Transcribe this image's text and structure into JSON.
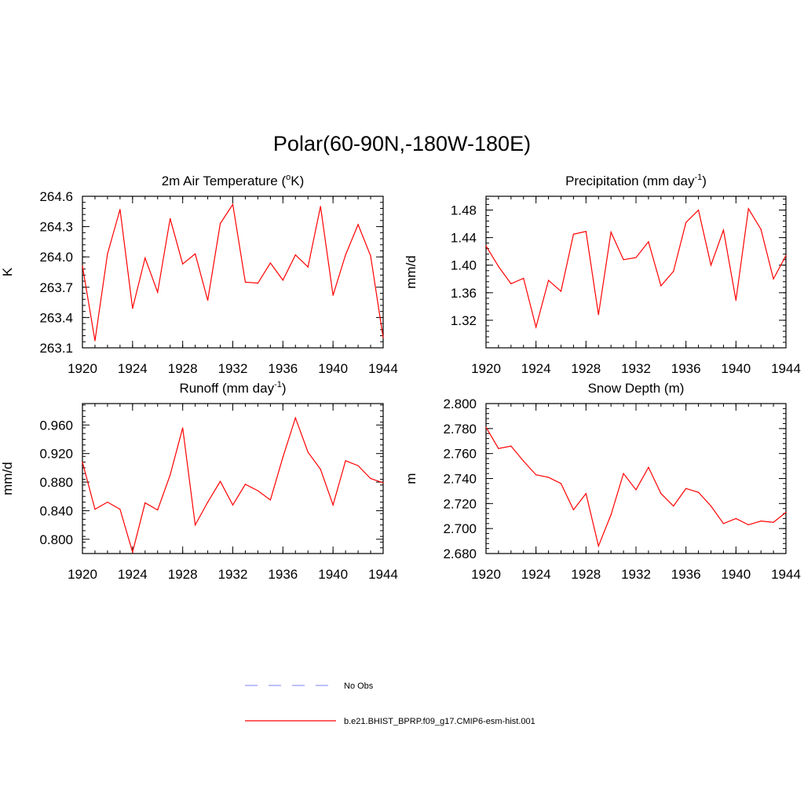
{
  "page_title": "Polar(60-90N,-180W-180E)",
  "legend": {
    "items": [
      {
        "label": "No Obs",
        "color": "#9999ff",
        "dash": true
      },
      {
        "label": "b.e21.BHIST_BPRP.f09_g17.CMIP6-esm-hist.001",
        "color": "#ff0000",
        "dash": false
      }
    ]
  },
  "chart_data": [
    {
      "type": "line",
      "title": "2m Air Temperature (",
      "title_sup": "o",
      "title_after": "K)",
      "ylabel": "K",
      "xlabel": "",
      "xlim": [
        1920,
        1944
      ],
      "ylim": [
        263.1,
        264.6
      ],
      "xticks": [
        "1920",
        "1924",
        "1928",
        "1932",
        "1936",
        "1940",
        "1944"
      ],
      "yticks": [
        "263.1",
        "263.4",
        "263.7",
        "264.0",
        "264.3",
        "264.6"
      ],
      "series": [
        {
          "name": "b.e21.BHIST_BPRP.f09_g17.CMIP6-esm-hist.001",
          "color": "#ff0000",
          "x": [
            1920,
            1921,
            1922,
            1923,
            1924,
            1925,
            1926,
            1927,
            1928,
            1929,
            1930,
            1931,
            1932,
            1933,
            1934,
            1935,
            1936,
            1937,
            1938,
            1939,
            1940,
            1941,
            1942,
            1943,
            1944
          ],
          "values": [
            263.91,
            263.17,
            264.03,
            264.47,
            263.49,
            263.99,
            263.65,
            264.38,
            263.93,
            264.03,
            263.57,
            264.33,
            264.52,
            263.75,
            263.74,
            263.94,
            263.77,
            264.02,
            263.9,
            264.5,
            263.62,
            264.02,
            264.32,
            264.01,
            263.2
          ]
        }
      ]
    },
    {
      "type": "line",
      "title": "Precipitation (mm day",
      "title_sup": "-1",
      "title_after": ")",
      "ylabel": "mm/d",
      "xlabel": "",
      "xlim": [
        1920,
        1944
      ],
      "ylim": [
        1.28,
        1.5
      ],
      "xticks": [
        "1920",
        "1924",
        "1928",
        "1932",
        "1936",
        "1940",
        "1944"
      ],
      "yticks": [
        "1.32",
        "1.36",
        "1.40",
        "1.44",
        "1.48"
      ],
      "series": [
        {
          "name": "b.e21.BHIST_BPRP.f09_g17.CMIP6-esm-hist.001",
          "color": "#ff0000",
          "x": [
            1920,
            1921,
            1922,
            1923,
            1924,
            1925,
            1926,
            1927,
            1928,
            1929,
            1930,
            1931,
            1932,
            1933,
            1934,
            1935,
            1936,
            1937,
            1938,
            1939,
            1940,
            1941,
            1942,
            1943,
            1944
          ],
          "values": [
            1.428,
            1.398,
            1.373,
            1.381,
            1.31,
            1.378,
            1.362,
            1.445,
            1.449,
            1.328,
            1.448,
            1.408,
            1.411,
            1.434,
            1.37,
            1.391,
            1.462,
            1.48,
            1.4,
            1.451,
            1.349,
            1.482,
            1.452,
            1.38,
            1.414
          ]
        }
      ]
    },
    {
      "type": "line",
      "title": "Runoff (mm day",
      "title_sup": "-1",
      "title_after": ")",
      "ylabel": "mm/d",
      "xlabel": "",
      "xlim": [
        1920,
        1944
      ],
      "ylim": [
        0.78,
        0.99
      ],
      "xticks": [
        "1920",
        "1924",
        "1928",
        "1932",
        "1936",
        "1940",
        "1944"
      ],
      "yticks": [
        "0.800",
        "0.840",
        "0.880",
        "0.920",
        "0.960"
      ],
      "series": [
        {
          "name": "b.e21.BHIST_BPRP.f09_g17.CMIP6-esm-hist.001",
          "color": "#ff0000",
          "x": [
            1920,
            1921,
            1922,
            1923,
            1924,
            1925,
            1926,
            1927,
            1928,
            1929,
            1930,
            1931,
            1932,
            1933,
            1934,
            1935,
            1936,
            1937,
            1938,
            1939,
            1940,
            1941,
            1942,
            1943,
            1944
          ],
          "values": [
            0.908,
            0.842,
            0.852,
            0.842,
            0.782,
            0.851,
            0.841,
            0.89,
            0.956,
            0.82,
            0.852,
            0.881,
            0.848,
            0.877,
            0.868,
            0.855,
            0.915,
            0.97,
            0.922,
            0.898,
            0.848,
            0.91,
            0.903,
            0.885,
            0.879
          ]
        }
      ]
    },
    {
      "type": "line",
      "title": "Snow Depth (m)",
      "title_sup": "",
      "title_after": "",
      "ylabel": "m",
      "xlabel": "",
      "xlim": [
        1920,
        1944
      ],
      "ylim": [
        2.68,
        2.8
      ],
      "xticks": [
        "1920",
        "1924",
        "1928",
        "1932",
        "1936",
        "1940",
        "1944"
      ],
      "yticks": [
        "2.680",
        "2.700",
        "2.720",
        "2.740",
        "2.760",
        "2.780",
        "2.800"
      ],
      "series": [
        {
          "name": "b.e21.BHIST_BPRP.f09_g17.CMIP6-esm-hist.001",
          "color": "#ff0000",
          "x": [
            1920,
            1921,
            1922,
            1923,
            1924,
            1925,
            1926,
            1927,
            1928,
            1929,
            1930,
            1931,
            1932,
            1933,
            1934,
            1935,
            1936,
            1937,
            1938,
            1939,
            1940,
            1941,
            1942,
            1943,
            1944
          ],
          "values": [
            2.781,
            2.764,
            2.766,
            2.754,
            2.743,
            2.741,
            2.736,
            2.715,
            2.728,
            2.686,
            2.711,
            2.744,
            2.731,
            2.749,
            2.728,
            2.718,
            2.732,
            2.729,
            2.718,
            2.704,
            2.708,
            2.703,
            2.706,
            2.705,
            2.713
          ]
        }
      ]
    }
  ]
}
